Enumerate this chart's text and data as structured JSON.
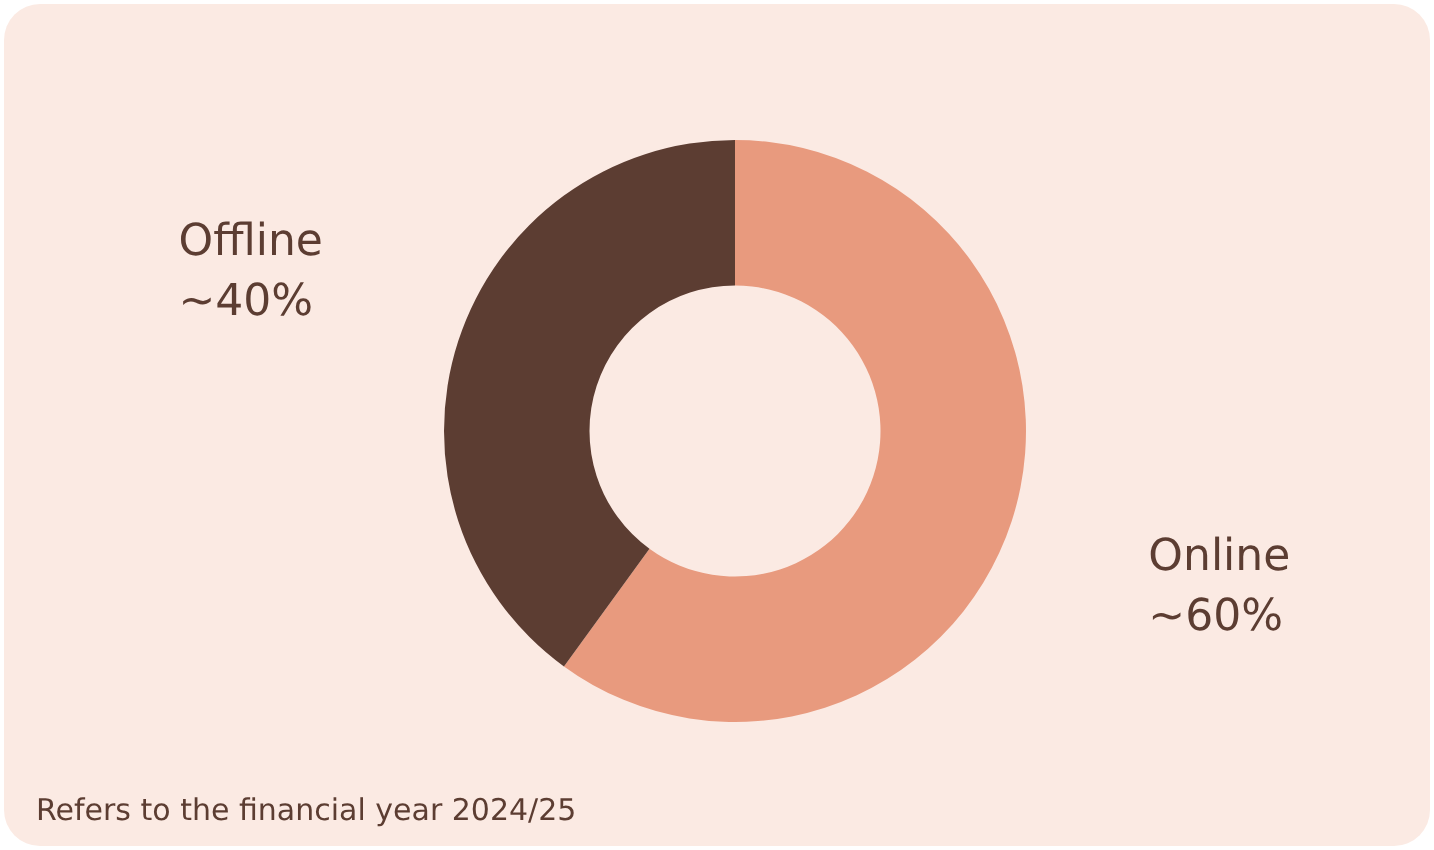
{
  "chart_data": {
    "type": "donut",
    "categories": [
      "Online",
      "Offline"
    ],
    "values": [
      60,
      40
    ],
    "colors": [
      "#e89a7e",
      "#5c3d32"
    ],
    "value_labels": [
      "~60%",
      "~40%"
    ],
    "legend": false,
    "annotations": [
      "Refers to the financial year 2024/25"
    ]
  }
}
